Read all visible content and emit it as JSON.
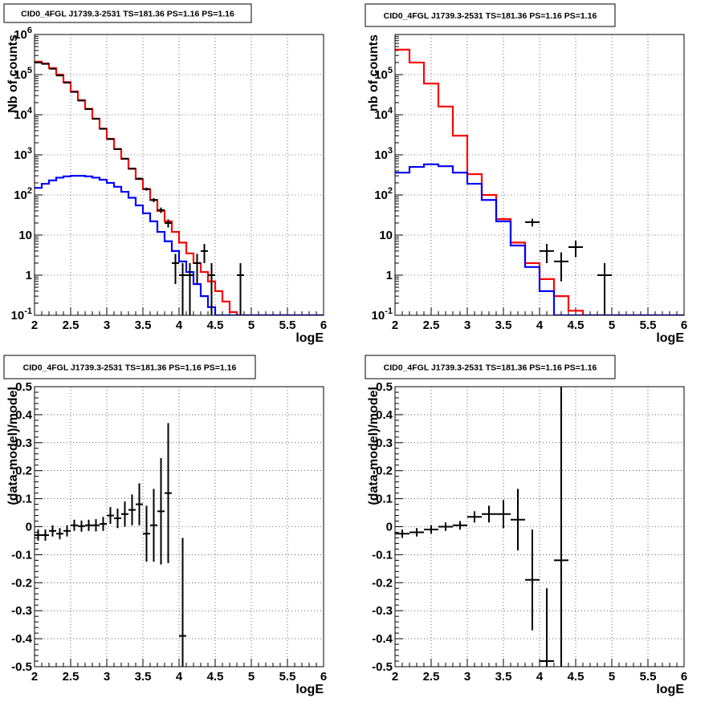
{
  "colors": {
    "data": "#000000",
    "model_total": "#ff0000",
    "model_source": "#0000ff",
    "frame": "#000000"
  },
  "panels": [
    {
      "title": "CID0_4FGL J1739.3-2531 TS=181.36 PS=1.16 PS=1.16",
      "chart_data": {
        "type": "line",
        "scale_y": "log",
        "xlabel": "logE",
        "ylabel": "Nb of counts",
        "xlim": [
          2,
          6
        ],
        "ylim": [
          0.1,
          1000000
        ],
        "xticks": [
          "2",
          "2.5",
          "3",
          "3.5",
          "4",
          "4.5",
          "5",
          "5.5",
          "6"
        ],
        "yticks": [
          "10^{-1}",
          "1",
          "10",
          "10^{2}",
          "10^{3}",
          "10^{4}",
          "10^{5}",
          "10^{6}"
        ],
        "grid": true,
        "bin_width": 0.1,
        "bin_edges_start": 2.0,
        "series": [
          {
            "role": "model_total",
            "type": "step",
            "values": [
              210000,
              190000,
              145000,
              100000,
              65000,
              38000,
              23000,
              14000,
              8000,
              4500,
              2500,
              1400,
              800,
              450,
              250,
              140,
              75,
              40,
              22,
              12,
              6.5,
              3.5,
              2.0,
              1.2,
              0.7,
              0.4,
              0.22,
              0.12,
              0.1,
              0.1,
              0.1,
              0.1,
              0.1,
              0.1,
              0.1,
              0.1,
              0.1,
              0.1,
              0.1,
              0.1
            ]
          },
          {
            "role": "model_source",
            "type": "step",
            "values": [
              150,
              190,
              230,
              270,
              290,
              300,
              300,
              290,
              270,
              240,
              200,
              160,
              120,
              85,
              55,
              35,
              22,
              12,
              7,
              4,
              2.2,
              1.2,
              0.6,
              0.3,
              0.16,
              0.1,
              0.1,
              0.1,
              0.1,
              0.1,
              0.1,
              0.1,
              0.1,
              0.1,
              0.1,
              0.1,
              0.1,
              0.1,
              0.1,
              0.1
            ]
          },
          {
            "role": "data",
            "type": "errorbar",
            "x": [
              2.05,
              2.15,
              2.25,
              2.35,
              2.45,
              2.55,
              2.65,
              2.75,
              2.85,
              2.95,
              3.05,
              3.15,
              3.25,
              3.35,
              3.45,
              3.55,
              3.65,
              3.75,
              3.85,
              3.95,
              4.05,
              4.15,
              4.25,
              4.35,
              4.45,
              4.55,
              4.65,
              4.75,
              4.85
            ],
            "y": [
              200000,
              185000,
              140000,
              95000,
              63000,
              37000,
              22500,
              13800,
              7900,
              4450,
              2480,
              1390,
              800,
              455,
              255,
              140,
              75,
              42,
              20,
              2,
              1,
              1,
              2,
              4,
              1,
              0,
              0,
              0,
              1
            ],
            "yerr": [
              450,
              430,
              370,
              310,
              250,
              190,
              150,
              117,
              89,
              67,
              50,
              37,
              28,
              21,
              16,
              12,
              8.7,
              6.5,
              4.5,
              1.4,
              1,
              1,
              1.4,
              2,
              1,
              0,
              0,
              0,
              1
            ]
          }
        ]
      }
    },
    {
      "title": "CID0_4FGL J1739.3-2531 TS=181.36 PS=1.16 PS=1.16",
      "chart_data": {
        "type": "line",
        "scale_y": "log",
        "xlabel": "logE",
        "ylabel": "nb of counts",
        "xlim": [
          2,
          6
        ],
        "ylim": [
          0.1,
          1000000
        ],
        "xticks": [
          "2",
          "2.5",
          "3",
          "3.5",
          "4",
          "4.5",
          "5",
          "5.5",
          "6"
        ],
        "yticks": [
          "10^{-1}",
          "1",
          "10",
          "10^{2}",
          "10^{3}",
          "10^{4}",
          "10^{5}"
        ],
        "grid": true,
        "bin_width": 0.2,
        "bin_edges_start": 2.0,
        "series": [
          {
            "role": "model_total",
            "type": "step",
            "values": [
              420000,
              200000,
              60000,
              16000,
              3000,
              330,
              100,
              25,
              6.5,
              2.0,
              0.8,
              0.3,
              0.13,
              0.1,
              0.1,
              0.1,
              0.1,
              0.1,
              0.1,
              0.1
            ]
          },
          {
            "role": "model_source",
            "type": "step",
            "values": [
              360,
              500,
              580,
              520,
              360,
              190,
              75,
              22,
              5.5,
              1.6,
              0.4,
              0.1,
              0.1,
              0.1,
              0.1,
              0.1,
              0.1,
              0.1,
              0.1,
              0.1
            ]
          },
          {
            "role": "data",
            "type": "errorbar",
            "x": [
              3.9,
              4.1,
              4.3,
              4.5,
              4.9
            ],
            "y": [
              21,
              4,
              2.2,
              5,
              1
            ],
            "yerr": [
              4.6,
              2,
              1.5,
              2.2,
              1
            ]
          }
        ]
      }
    },
    {
      "title": "CID0_4FGL J1739.3-2531 TS=181.36 PS=1.16 PS=1.16",
      "chart_data": {
        "type": "scatter",
        "scale_y": "linear",
        "xlabel": "logE",
        "ylabel": "(data-model)/model",
        "xlim": [
          2,
          6
        ],
        "ylim": [
          -0.5,
          0.5
        ],
        "xticks": [
          "2",
          "2.5",
          "3",
          "3.5",
          "4",
          "4.5",
          "5",
          "5.5",
          "6"
        ],
        "yticks": [
          "-0.5",
          "-0.4",
          "-0.3",
          "-0.2",
          "-0.1",
          "0",
          "0.1",
          "0.2",
          "0.3",
          "0.4",
          "0.5"
        ],
        "grid": true,
        "bin_width": 0.1,
        "series": [
          {
            "role": "data",
            "type": "errorbar",
            "x": [
              2.05,
              2.15,
              2.25,
              2.35,
              2.45,
              2.55,
              2.65,
              2.75,
              2.85,
              2.95,
              3.05,
              3.15,
              3.25,
              3.35,
              3.45,
              3.55,
              3.65,
              3.75,
              3.85,
              4.05
            ],
            "y": [
              -0.03,
              -0.03,
              -0.015,
              -0.025,
              -0.015,
              0.005,
              0.002,
              0.005,
              0.005,
              0.01,
              0.04,
              0.03,
              0.045,
              0.06,
              0.08,
              -0.025,
              0.005,
              0.055,
              0.12,
              -0.39
            ],
            "yerr": [
              0.02,
              0.02,
              0.02,
              0.02,
              0.02,
              0.02,
              0.02,
              0.02,
              0.022,
              0.025,
              0.03,
              0.035,
              0.045,
              0.055,
              0.075,
              0.1,
              0.13,
              0.19,
              0.25,
              0.35
            ]
          }
        ]
      }
    },
    {
      "title": "CID0_4FGL J1739.3-2531 TS=181.36 PS=1.16 PS=1.16",
      "chart_data": {
        "type": "scatter",
        "scale_y": "linear",
        "xlabel": "logE",
        "ylabel": "(data-model)/model",
        "xlim": [
          2,
          6
        ],
        "ylim": [
          -0.5,
          0.5
        ],
        "xticks": [
          "2",
          "2.5",
          "3",
          "3.5",
          "4",
          "4.5",
          "5",
          "5.5",
          "6"
        ],
        "yticks": [
          "-0.5",
          "-0.4",
          "-0.3",
          "-0.2",
          "-0.1",
          "0",
          "0.1",
          "0.2",
          "0.3",
          "0.4",
          "0.5"
        ],
        "grid": true,
        "bin_width": 0.2,
        "series": [
          {
            "role": "data",
            "type": "errorbar",
            "x": [
              2.1,
              2.3,
              2.5,
              2.7,
              2.9,
              3.1,
              3.3,
              3.5,
              3.7,
              3.9,
              4.1,
              4.3
            ],
            "y": [
              -0.025,
              -0.02,
              -0.01,
              0.0,
              0.005,
              0.035,
              0.045,
              0.045,
              0.025,
              -0.19,
              -0.48,
              -0.12
            ],
            "yerr": [
              0.015,
              0.015,
              0.015,
              0.015,
              0.015,
              0.02,
              0.03,
              0.05,
              0.11,
              0.18,
              0.26,
              0.62
            ]
          }
        ]
      }
    }
  ]
}
